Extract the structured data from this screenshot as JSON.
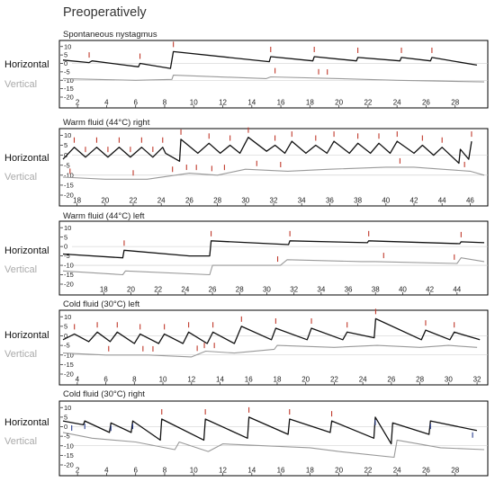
{
  "page_title": "Preoperatively",
  "row_labels": {
    "horizontal": "Horizontal",
    "vertical": "Vertical"
  },
  "colors": {
    "horizontal": "#111111",
    "vertical": "#999999",
    "beat_marker": "#c0392b",
    "beat_marker_alt": "#2a3f8f",
    "frame": "#000000",
    "zero_line": "#c8c8c8"
  },
  "chart_data": [
    {
      "type": "line",
      "title": "Spontaneous nystagmus",
      "ylim": [
        -20,
        12
      ],
      "yticks": [
        10,
        5,
        0,
        -5,
        -10,
        -15,
        -20
      ],
      "xlim": [
        1,
        30
      ],
      "xticks": [
        2,
        4,
        6,
        8,
        10,
        12,
        14,
        16,
        18,
        20,
        22,
        24,
        26,
        28
      ],
      "series": [
        {
          "name": "Horizontal",
          "color": "#111111",
          "points": [
            [
              1,
              2
            ],
            [
              2.8,
              0.5
            ],
            [
              3,
              1.5
            ],
            [
              6.2,
              -2
            ],
            [
              6.3,
              0
            ],
            [
              8.4,
              -3
            ],
            [
              8.6,
              7
            ],
            [
              15.2,
              1
            ],
            [
              15.3,
              4
            ],
            [
              18.2,
              1.5
            ],
            [
              18.3,
              4
            ],
            [
              21.2,
              1.5
            ],
            [
              21.3,
              3.5
            ],
            [
              24.2,
              1.5
            ],
            [
              24.3,
              3.5
            ],
            [
              26.3,
              1.5
            ],
            [
              26.4,
              3.5
            ],
            [
              29.5,
              -1
            ]
          ]
        },
        {
          "name": "Vertical",
          "color": "#999999",
          "points": [
            [
              1,
              -9
            ],
            [
              6,
              -10
            ],
            [
              8.5,
              -9.5
            ],
            [
              8.6,
              -7
            ],
            [
              15,
              -9
            ],
            [
              15.3,
              -8
            ],
            [
              20,
              -9
            ],
            [
              24,
              -10
            ],
            [
              30,
              -11
            ]
          ]
        }
      ],
      "beat_markers_x": [
        2.8,
        6.3,
        8.6,
        15.3,
        18.3,
        21.3,
        24.3,
        26.4
      ],
      "vertical_markers_x": [
        15.6,
        18.6,
        19.2
      ],
      "alt_markers_x": []
    },
    {
      "type": "line",
      "title": "Warm fluid (44°C) right",
      "ylim": [
        -20,
        12
      ],
      "yticks": [
        10,
        5,
        0,
        -5,
        -10,
        -15,
        -20
      ],
      "xlim": [
        17,
        47
      ],
      "xticks": [
        18,
        20,
        22,
        24,
        26,
        28,
        30,
        32,
        34,
        36,
        38,
        40,
        42,
        44,
        46
      ],
      "series": [
        {
          "name": "Horizontal",
          "color": "#111111",
          "points": [
            [
              17,
              -2
            ],
            [
              17.8,
              4
            ],
            [
              18.6,
              -1
            ],
            [
              19.4,
              4
            ],
            [
              20.2,
              -1
            ],
            [
              21,
              4
            ],
            [
              21.8,
              -1
            ],
            [
              22.6,
              4
            ],
            [
              23.4,
              -1
            ],
            [
              24.1,
              4
            ],
            [
              24.3,
              1
            ],
            [
              25.3,
              -3
            ],
            [
              25.4,
              8
            ],
            [
              26.6,
              1
            ],
            [
              27.4,
              6
            ],
            [
              28.2,
              1
            ],
            [
              28.9,
              5
            ],
            [
              29.6,
              1
            ],
            [
              30.2,
              9
            ],
            [
              31.5,
              2
            ],
            [
              32.1,
              5
            ],
            [
              32.8,
              1
            ],
            [
              33.3,
              7
            ],
            [
              34.3,
              1
            ],
            [
              35,
              5
            ],
            [
              35.8,
              1
            ],
            [
              36.3,
              7
            ],
            [
              37.4,
              1
            ],
            [
              38,
              6
            ],
            [
              38.9,
              1
            ],
            [
              39.5,
              6
            ],
            [
              40.3,
              1
            ],
            [
              40.8,
              7
            ],
            [
              42,
              1
            ],
            [
              42.6,
              5
            ],
            [
              43.4,
              0
            ],
            [
              44,
              4
            ],
            [
              45.2,
              -4
            ],
            [
              45.3,
              3
            ],
            [
              45.9,
              -2
            ],
            [
              46.1,
              7
            ]
          ]
        },
        {
          "name": "Vertical",
          "color": "#999999",
          "points": [
            [
              17,
              -11
            ],
            [
              20,
              -12
            ],
            [
              23,
              -12
            ],
            [
              25,
              -10
            ],
            [
              26,
              -9
            ],
            [
              28,
              -10
            ],
            [
              30,
              -7
            ],
            [
              33,
              -8
            ],
            [
              36,
              -7
            ],
            [
              40,
              -6
            ],
            [
              42,
              -6
            ],
            [
              44,
              -7
            ],
            [
              46,
              -8
            ],
            [
              47,
              -10
            ]
          ]
        }
      ],
      "beat_markers_x": [
        17.8,
        18.6,
        19.4,
        20.2,
        21,
        21.8,
        22.6,
        23.4,
        24.1,
        25.4,
        27.4,
        28.9,
        30.2,
        32.1,
        33.3,
        35,
        36.3,
        38,
        39.5,
        40.8,
        42.6,
        44,
        46.1
      ],
      "vertical_markers_x": [
        17.5,
        22,
        24.8,
        25.8,
        26.5,
        27.6,
        28.5,
        30.8,
        32.5,
        41,
        45.6
      ],
      "alt_markers_x": []
    },
    {
      "type": "line",
      "title": "Warm fluid (44°C) left",
      "ylim": [
        -20,
        12
      ],
      "yticks": [
        10,
        5,
        0,
        -5,
        -10,
        -15,
        -20
      ],
      "xlim": [
        15,
        46
      ],
      "xticks": [
        18,
        20,
        22,
        24,
        26,
        28,
        30,
        32,
        34,
        36,
        38,
        40,
        42,
        44
      ],
      "series": [
        {
          "name": "Horizontal",
          "color": "#111111",
          "points": [
            [
              15,
              -4
            ],
            [
              19.4,
              -6
            ],
            [
              19.5,
              -2
            ],
            [
              24.3,
              -5
            ],
            [
              25.8,
              -5
            ],
            [
              25.9,
              3
            ],
            [
              31.6,
              1
            ],
            [
              31.7,
              3
            ],
            [
              37.4,
              2
            ],
            [
              37.5,
              3
            ],
            [
              44.2,
              1.5
            ],
            [
              44.3,
              2.5
            ],
            [
              46,
              2
            ]
          ]
        },
        {
          "name": "Vertical",
          "color": "#999999",
          "points": [
            [
              15,
              -13
            ],
            [
              19.4,
              -15
            ],
            [
              19.6,
              -13
            ],
            [
              25.8,
              -15
            ],
            [
              26,
              -10
            ],
            [
              31,
              -10
            ],
            [
              31.5,
              -7
            ],
            [
              37,
              -8
            ],
            [
              38,
              -8
            ],
            [
              44,
              -9
            ],
            [
              44.3,
              -6
            ],
            [
              46,
              -8
            ]
          ]
        }
      ],
      "beat_markers_x": [
        19.5,
        25.9,
        31.7,
        37.5,
        44.3
      ],
      "vertical_markers_x": [
        30.8,
        38.6,
        43.8
      ],
      "alt_markers_x": []
    },
    {
      "type": "line",
      "title": "Cold fluid (30°C) left",
      "ylim": [
        -20,
        12
      ],
      "yticks": [
        10,
        5,
        0,
        -5,
        -10,
        -15,
        -20
      ],
      "xlim": [
        3,
        32.5
      ],
      "xticks": [
        4,
        6,
        8,
        10,
        12,
        14,
        16,
        18,
        20,
        22,
        24,
        26,
        28,
        30,
        32
      ],
      "series": [
        {
          "name": "Horizontal",
          "color": "#111111",
          "points": [
            [
              3,
              -2
            ],
            [
              3.8,
              1
            ],
            [
              4.8,
              -3
            ],
            [
              5.4,
              2
            ],
            [
              6.3,
              -3
            ],
            [
              6.8,
              2
            ],
            [
              8,
              -4
            ],
            [
              8.4,
              1
            ],
            [
              9.7,
              -4
            ],
            [
              10.1,
              1
            ],
            [
              11.4,
              -4
            ],
            [
              11.8,
              2
            ],
            [
              13.1,
              -4
            ],
            [
              13.5,
              2
            ],
            [
              15,
              -4
            ],
            [
              15.5,
              5
            ],
            [
              17.6,
              -2
            ],
            [
              17.9,
              4
            ],
            [
              20.1,
              -2
            ],
            [
              20.4,
              4
            ],
            [
              22.6,
              -2
            ],
            [
              22.9,
              2
            ],
            [
              24.8,
              -1
            ],
            [
              24.9,
              9
            ],
            [
              28.1,
              -2
            ],
            [
              28.4,
              3
            ],
            [
              30.1,
              -2
            ],
            [
              30.4,
              2
            ],
            [
              32.2,
              -2
            ]
          ]
        },
        {
          "name": "Vertical",
          "color": "#999999",
          "points": [
            [
              3,
              -9
            ],
            [
              6,
              -10
            ],
            [
              9,
              -10
            ],
            [
              12,
              -11
            ],
            [
              13,
              -8
            ],
            [
              15,
              -9
            ],
            [
              17.8,
              -7
            ],
            [
              18,
              -5
            ],
            [
              22,
              -6
            ],
            [
              25,
              -5
            ],
            [
              28,
              -6
            ],
            [
              30,
              -5
            ],
            [
              32,
              -6
            ]
          ]
        }
      ],
      "beat_markers_x": [
        3.8,
        5.4,
        6.8,
        8.4,
        10.1,
        11.8,
        13.5,
        15.5,
        17.9,
        20.4,
        22.9,
        24.9,
        28.4,
        30.4
      ],
      "vertical_markers_x": [
        6.2,
        8.6,
        9.3,
        12.4,
        12.9,
        13.6
      ],
      "alt_markers_x": []
    },
    {
      "type": "line",
      "title": "Cold fluid (30°C) right",
      "ylim": [
        -20,
        12
      ],
      "yticks": [
        10,
        5,
        0,
        -5,
        -10,
        -15,
        -20
      ],
      "xlim": [
        1,
        30
      ],
      "xticks": [
        2,
        4,
        6,
        8,
        10,
        12,
        14,
        16,
        18,
        20,
        22,
        24,
        26,
        28
      ],
      "series": [
        {
          "name": "Horizontal",
          "color": "#111111",
          "points": [
            [
              1,
              3
            ],
            [
              2.4,
              1
            ],
            [
              2.5,
              3
            ],
            [
              4.2,
              -3
            ],
            [
              4.3,
              2
            ],
            [
              5.7,
              -3
            ],
            [
              5.8,
              3
            ],
            [
              7.7,
              -7
            ],
            [
              7.8,
              4
            ],
            [
              10.7,
              -7
            ],
            [
              10.8,
              4
            ],
            [
              13.7,
              -6
            ],
            [
              13.8,
              5
            ],
            [
              16.5,
              -4
            ],
            [
              16.6,
              4
            ],
            [
              19.4,
              -3
            ],
            [
              19.5,
              3
            ],
            [
              22.4,
              -6
            ],
            [
              22.5,
              5
            ],
            [
              23.6,
              -9
            ],
            [
              23.7,
              2
            ],
            [
              26.2,
              -4
            ],
            [
              26.3,
              3
            ],
            [
              29.5,
              -2
            ]
          ]
        },
        {
          "name": "Vertical",
          "color": "#999999",
          "points": [
            [
              1,
              -3
            ],
            [
              3,
              -6
            ],
            [
              6,
              -8
            ],
            [
              8.7,
              -12
            ],
            [
              9,
              -8
            ],
            [
              11,
              -13
            ],
            [
              12,
              -9
            ],
            [
              15,
              -10
            ],
            [
              18,
              -11
            ],
            [
              20,
              -13
            ],
            [
              23.8,
              -16
            ],
            [
              24,
              -7
            ],
            [
              27,
              -11
            ],
            [
              30,
              -12
            ]
          ]
        }
      ],
      "beat_markers_x": [
        7.8,
        10.8,
        13.8,
        16.6,
        19.5
      ],
      "vertical_markers_x": [],
      "alt_markers_x": [
        1.6,
        2.5,
        4.3,
        5.8,
        22.5,
        26.3,
        29.2
      ]
    }
  ]
}
